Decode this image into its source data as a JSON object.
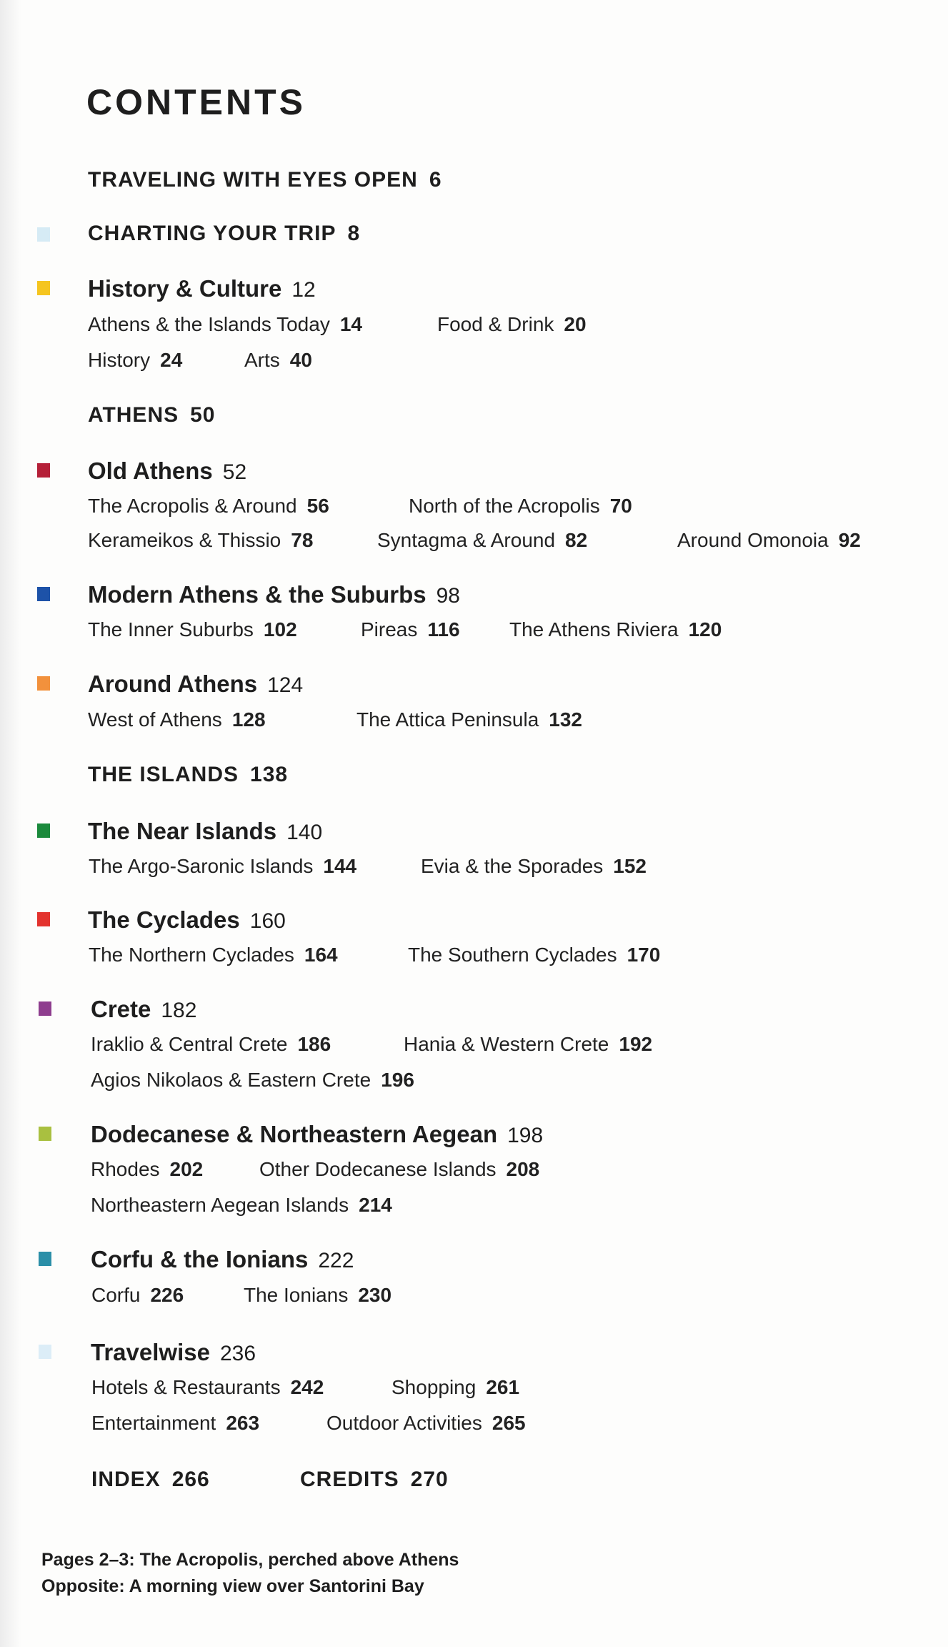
{
  "title": "CONTENTS",
  "entries": [
    {
      "type": "part",
      "title": "TRAVELING WITH EYES OPEN",
      "page": "6"
    },
    {
      "type": "part",
      "title": "CHARTING YOUR TRIP",
      "page": "8",
      "color": "#d6ebf5"
    },
    {
      "type": "chapter",
      "title": "History & Culture",
      "page": "12",
      "color": "#f5c520",
      "rows": [
        [
          {
            "title": "Athens & the Islands Today",
            "page": "14"
          },
          {
            "title": "Food & Drink",
            "page": "20"
          }
        ],
        [
          {
            "title": "History",
            "page": "24"
          },
          {
            "title": "Arts",
            "page": "40"
          }
        ]
      ]
    },
    {
      "type": "part",
      "title": "ATHENS",
      "page": "50"
    },
    {
      "type": "chapter",
      "title": "Old Athens",
      "page": "52",
      "color": "#b52038",
      "rows": [
        [
          {
            "title": "The Acropolis & Around",
            "page": "56"
          },
          {
            "title": "North of the Acropolis",
            "page": "70"
          }
        ],
        [
          {
            "title": "Kerameikos & Thissio",
            "page": "78"
          },
          {
            "title": "Syntagma & Around",
            "page": "82"
          },
          {
            "title": "Around Omonoia",
            "page": "92"
          }
        ]
      ]
    },
    {
      "type": "chapter",
      "title": "Modern Athens & the Suburbs",
      "page": "98",
      "color": "#1d52a8",
      "rows": [
        [
          {
            "title": "The Inner Suburbs",
            "page": "102"
          },
          {
            "title": "Pireas",
            "page": "116"
          },
          {
            "title": "The Athens Riviera",
            "page": "120"
          }
        ]
      ]
    },
    {
      "type": "chapter",
      "title": "Around Athens",
      "page": "124",
      "color": "#f2913c",
      "rows": [
        [
          {
            "title": "West of Athens",
            "page": "128"
          },
          {
            "title": "The Attica Peninsula",
            "page": "132"
          }
        ]
      ]
    },
    {
      "type": "part",
      "title": "THE ISLANDS",
      "page": "138"
    },
    {
      "type": "chapter",
      "title": "The Near Islands",
      "page": "140",
      "color": "#1b8a3c",
      "rows": [
        [
          {
            "title": "The Argo-Saronic Islands",
            "page": "144"
          },
          {
            "title": "Evia & the Sporades",
            "page": "152"
          }
        ]
      ]
    },
    {
      "type": "chapter",
      "title": "The Cyclades",
      "page": "160",
      "color": "#e3332e",
      "rows": [
        [
          {
            "title": "The Northern Cyclades",
            "page": "164"
          },
          {
            "title": "The Southern Cyclades",
            "page": "170"
          }
        ]
      ]
    },
    {
      "type": "chapter",
      "title": "Crete",
      "page": "182",
      "color": "#8e3d8e",
      "rows": [
        [
          {
            "title": "Iraklio & Central Crete",
            "page": "186"
          },
          {
            "title": "Hania & Western Crete",
            "page": "192"
          }
        ],
        [
          {
            "title": "Agios Nikolaos & Eastern Crete",
            "page": "196"
          }
        ]
      ]
    },
    {
      "type": "chapter",
      "title": "Dodecanese & Northeastern Aegean",
      "page": "198",
      "color": "#a9c040",
      "rows": [
        [
          {
            "title": "Rhodes",
            "page": "202"
          },
          {
            "title": "Other Dodecanese Islands",
            "page": "208"
          }
        ],
        [
          {
            "title": "Northeastern Aegean Islands",
            "page": "214"
          }
        ]
      ]
    },
    {
      "type": "chapter",
      "title": "Corfu & the Ionians",
      "page": "222",
      "color": "#2b8fa8",
      "rows": [
        [
          {
            "title": "Corfu",
            "page": "226"
          },
          {
            "title": "The Ionians",
            "page": "230"
          }
        ]
      ]
    },
    {
      "type": "chapter",
      "title": "Travelwise",
      "page": "236",
      "color": "#dcedf7",
      "rows": [
        [
          {
            "title": "Hotels & Restaurants",
            "page": "242"
          },
          {
            "title": "Shopping",
            "page": "261"
          }
        ],
        [
          {
            "title": "Entertainment",
            "page": "263"
          },
          {
            "title": "Outdoor Activities",
            "page": "265"
          }
        ]
      ]
    },
    {
      "type": "part-row",
      "items": [
        {
          "title": "INDEX",
          "page": "266"
        },
        {
          "title": "CREDITS",
          "page": "270"
        }
      ]
    }
  ],
  "captions": [
    "Pages 2–3: The Acropolis, perched above Athens",
    "Opposite: A morning view over Santorini Bay"
  ]
}
